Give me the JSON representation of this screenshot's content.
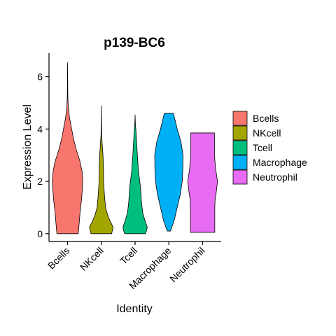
{
  "chart_data": {
    "type": "violin",
    "title": "p139-BC6",
    "xlabel": "Identity",
    "ylabel": "Expression Level",
    "categories": [
      "Bcells",
      "NKcell",
      "Tcell",
      "Macrophage",
      "Neutrophil"
    ],
    "colors": [
      "#F8766D",
      "#A3A500",
      "#00BF7D",
      "#00B0F6",
      "#E76BF3"
    ],
    "ylim": [
      -0.3,
      6.9
    ],
    "yticks": [
      0,
      2,
      4,
      6
    ],
    "grid": false,
    "legend_position": "right",
    "legend": [
      "Bcells",
      "NKcell",
      "Tcell",
      "Macrophage",
      "Neutrophil"
    ],
    "series": [
      {
        "category": "Bcells",
        "min": 0.0,
        "max": 6.55,
        "profile": [
          [
            0.0,
            0.7
          ],
          [
            0.1,
            0.72
          ],
          [
            0.3,
            0.75
          ],
          [
            0.5,
            0.78
          ],
          [
            0.8,
            0.82
          ],
          [
            1.2,
            0.9
          ],
          [
            1.6,
            0.96
          ],
          [
            2.0,
            1.0
          ],
          [
            2.4,
            0.95
          ],
          [
            2.8,
            0.8
          ],
          [
            3.2,
            0.58
          ],
          [
            3.6,
            0.4
          ],
          [
            4.0,
            0.27
          ],
          [
            4.4,
            0.14
          ],
          [
            4.8,
            0.05
          ],
          [
            5.2,
            0.02
          ],
          [
            5.6,
            0.012
          ],
          [
            6.0,
            0.008
          ],
          [
            6.55,
            0.0
          ]
        ]
      },
      {
        "category": "NKcell",
        "min": 0.0,
        "max": 4.9,
        "profile": [
          [
            0.0,
            0.68
          ],
          [
            0.1,
            0.72
          ],
          [
            0.25,
            0.78
          ],
          [
            0.45,
            0.6
          ],
          [
            0.7,
            0.42
          ],
          [
            1.0,
            0.28
          ],
          [
            1.5,
            0.2
          ],
          [
            2.0,
            0.15
          ],
          [
            2.5,
            0.14
          ],
          [
            3.0,
            0.11
          ],
          [
            3.4,
            0.06
          ],
          [
            3.8,
            0.02
          ],
          [
            4.2,
            0.012
          ],
          [
            4.9,
            0.0
          ]
        ]
      },
      {
        "category": "Tcell",
        "min": 0.0,
        "max": 4.55,
        "profile": [
          [
            0.0,
            0.68
          ],
          [
            0.1,
            0.75
          ],
          [
            0.25,
            0.8
          ],
          [
            0.5,
            0.65
          ],
          [
            0.8,
            0.5
          ],
          [
            1.2,
            0.42
          ],
          [
            1.8,
            0.35
          ],
          [
            2.4,
            0.22
          ],
          [
            3.0,
            0.15
          ],
          [
            3.5,
            0.1
          ],
          [
            3.9,
            0.06
          ],
          [
            4.2,
            0.02
          ],
          [
            4.55,
            0.0
          ]
        ]
      },
      {
        "category": "Macrophage",
        "min": 0.1,
        "max": 4.6,
        "profile": [
          [
            0.1,
            0.1
          ],
          [
            0.5,
            0.35
          ],
          [
            1.0,
            0.55
          ],
          [
            1.5,
            0.75
          ],
          [
            2.0,
            0.88
          ],
          [
            2.5,
            0.92
          ],
          [
            3.0,
            0.93
          ],
          [
            3.5,
            0.8
          ],
          [
            4.0,
            0.55
          ],
          [
            4.6,
            0.3
          ]
        ]
      },
      {
        "category": "Neutrophil",
        "min": 0.05,
        "max": 3.85,
        "profile": [
          [
            0.05,
            0.8
          ],
          [
            0.5,
            0.8
          ],
          [
            1.0,
            0.8
          ],
          [
            1.3,
            0.82
          ],
          [
            1.6,
            0.9
          ],
          [
            2.0,
            0.98
          ],
          [
            2.5,
            0.85
          ],
          [
            3.0,
            0.78
          ],
          [
            3.4,
            0.78
          ],
          [
            3.85,
            0.78
          ]
        ]
      }
    ]
  }
}
